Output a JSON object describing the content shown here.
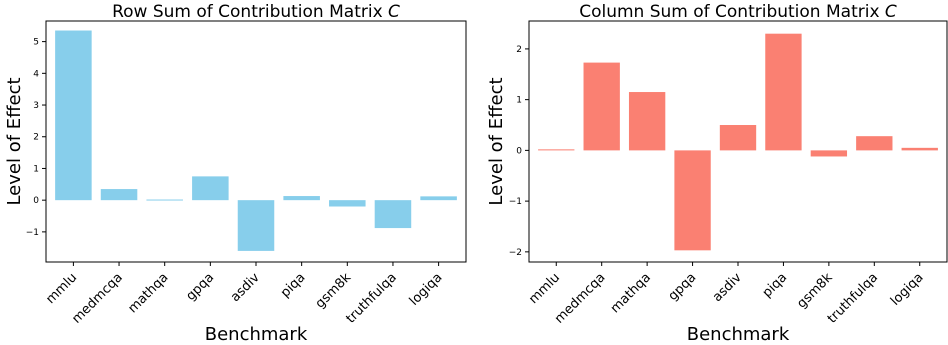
{
  "chart_data": [
    {
      "type": "bar",
      "title_prefix": "Row Sum of Contribution Matrix ",
      "title_symbol": "C",
      "xlabel": "Benchmark",
      "ylabel": "Level of Effect",
      "categories": [
        "mmlu",
        "medmcqa",
        "mathqa",
        "gpqa",
        "asdiv",
        "piqa",
        "gsm8k",
        "truthfulqa",
        "logiqa"
      ],
      "values": [
        5.35,
        0.35,
        0.02,
        0.75,
        -1.6,
        0.13,
        -0.2,
        -0.88,
        0.12
      ],
      "yticks": [
        -1,
        0,
        1,
        2,
        3,
        4,
        5
      ],
      "ytick_labels": [
        "−1",
        "0",
        "1",
        "2",
        "3",
        "4",
        "5"
      ],
      "ylim": [
        -1.95,
        5.65
      ],
      "color": "#87ceeb"
    },
    {
      "type": "bar",
      "title_prefix": "Column Sum of Contribution Matrix ",
      "title_symbol": "C",
      "xlabel": "Benchmark",
      "ylabel": "Level of Effect",
      "categories": [
        "mmlu",
        "medmcqa",
        "mathqa",
        "gpqa",
        "asdiv",
        "piqa",
        "gsm8k",
        "truthfulqa",
        "logiqa"
      ],
      "values": [
        0.02,
        1.73,
        1.15,
        -1.97,
        0.5,
        2.3,
        -0.12,
        0.28,
        0.05
      ],
      "yticks": [
        -2,
        -1,
        0,
        1,
        2
      ],
      "ytick_labels": [
        "−2",
        "−1",
        "0",
        "1",
        "2"
      ],
      "ylim": [
        -2.2,
        2.55
      ],
      "color": "#fa8072"
    }
  ]
}
